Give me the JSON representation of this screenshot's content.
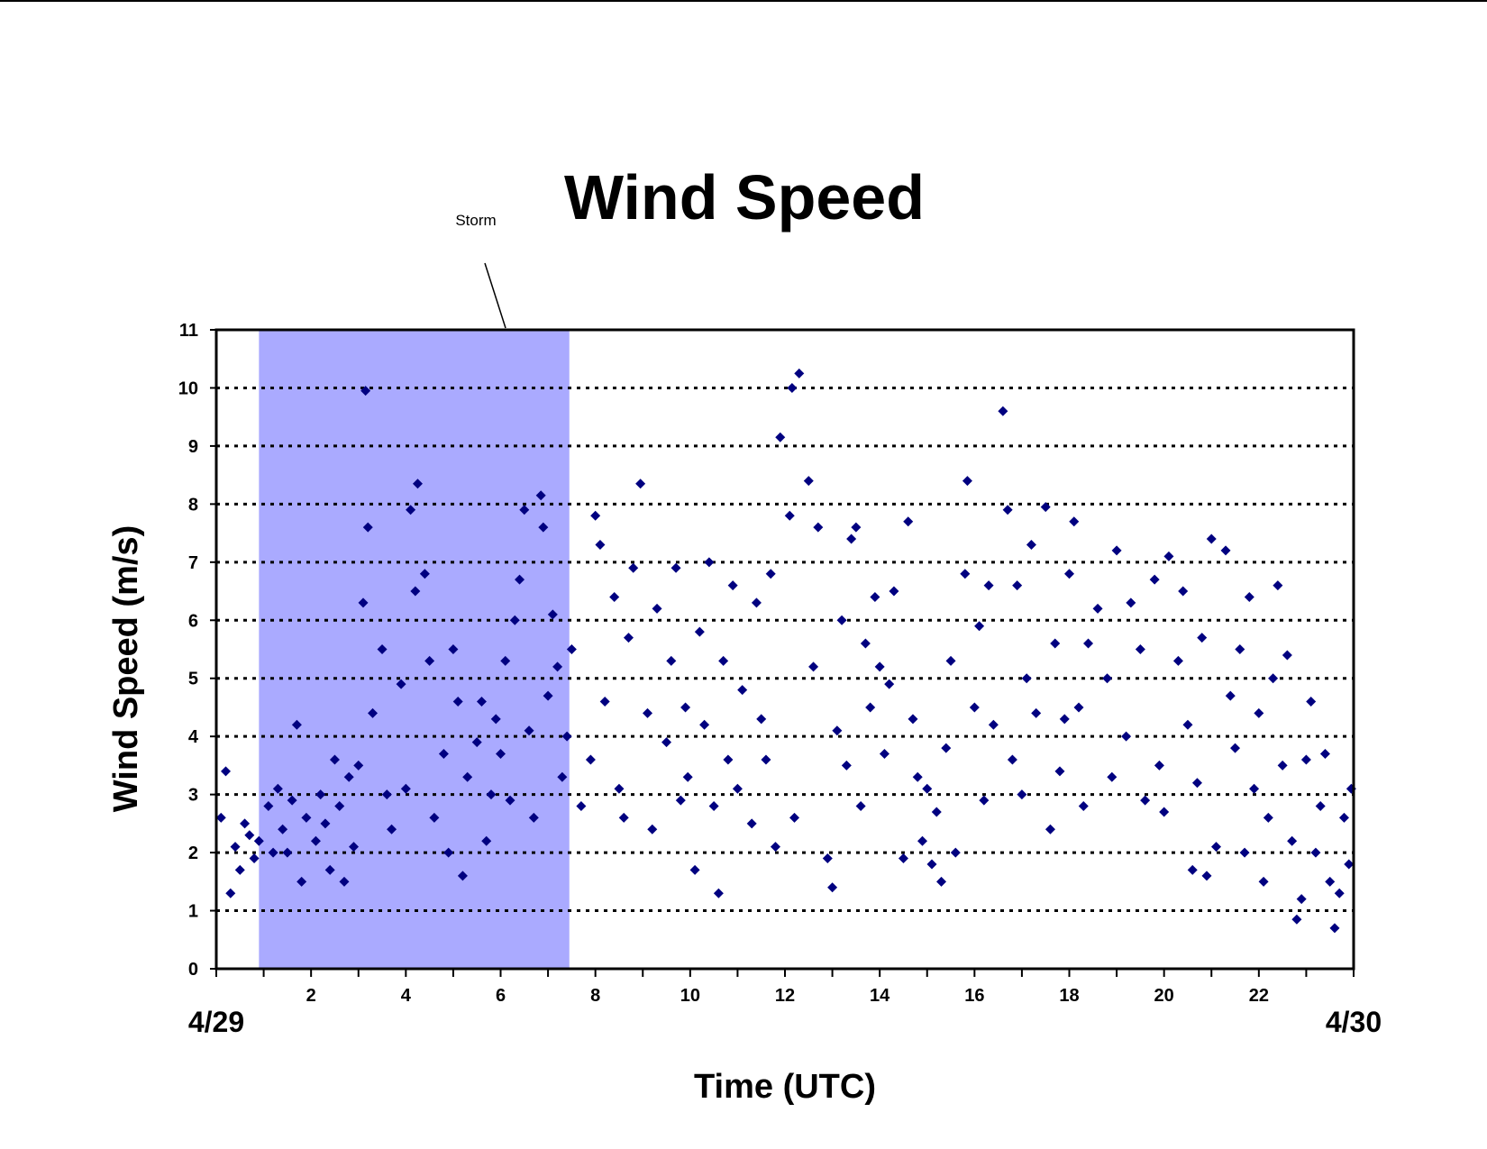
{
  "chart_data": {
    "type": "scatter",
    "title": "Wind Speed",
    "xlabel": "Time (UTC)",
    "ylabel": "Wind Speed (m/s)",
    "annotation": "Storm",
    "storm_span": [
      0.9,
      7.45
    ],
    "storm_color": "#aaaaff",
    "xlim": [
      0,
      24
    ],
    "ylim": [
      0,
      11
    ],
    "xticks": [
      {
        "value": 0,
        "label": "4/29"
      },
      2,
      4,
      6,
      8,
      10,
      12,
      14,
      16,
      18,
      20,
      22,
      {
        "value": 24,
        "label": "4/30"
      }
    ],
    "xminorticks": [
      1,
      3,
      5,
      7,
      9,
      11,
      13,
      15,
      17,
      19,
      21,
      23
    ],
    "yticks": [
      0,
      1,
      2,
      3,
      4,
      5,
      6,
      7,
      8,
      9,
      10,
      11
    ],
    "grid": true,
    "series": [
      {
        "name": "Wind Speed",
        "color": "#000080",
        "x": [
          0.1,
          0.2,
          0.3,
          0.4,
          0.5,
          0.6,
          0.7,
          0.8,
          0.9,
          1.1,
          1.2,
          1.3,
          1.4,
          1.5,
          1.6,
          1.7,
          1.8,
          1.9,
          2.1,
          2.2,
          2.3,
          2.4,
          2.5,
          2.6,
          2.7,
          2.8,
          2.9,
          3.0,
          3.1,
          3.15,
          3.2,
          3.3,
          3.5,
          3.6,
          3.7,
          3.9,
          4.0,
          4.1,
          4.2,
          4.25,
          4.4,
          4.5,
          4.6,
          4.8,
          4.9,
          5.0,
          5.1,
          5.2,
          5.3,
          5.5,
          5.6,
          5.7,
          5.8,
          5.9,
          6.0,
          6.1,
          6.2,
          6.3,
          6.4,
          6.5,
          6.6,
          6.7,
          6.85,
          6.9,
          7.0,
          7.1,
          7.2,
          7.3,
          7.4,
          7.5,
          7.7,
          7.9,
          8.0,
          8.1,
          8.2,
          8.4,
          8.5,
          8.6,
          8.7,
          8.8,
          8.95,
          9.1,
          9.2,
          9.3,
          9.5,
          9.6,
          9.7,
          9.8,
          9.9,
          9.95,
          10.1,
          10.2,
          10.3,
          10.4,
          10.5,
          10.6,
          10.7,
          10.8,
          10.9,
          11.0,
          11.1,
          11.3,
          11.4,
          11.5,
          11.6,
          11.7,
          11.8,
          11.9,
          12.1,
          12.15,
          12.3,
          12.2,
          12.5,
          12.6,
          12.7,
          12.9,
          13.0,
          13.1,
          13.2,
          13.3,
          13.4,
          13.5,
          13.6,
          13.7,
          13.8,
          13.9,
          14.0,
          14.1,
          14.2,
          14.3,
          14.5,
          14.6,
          14.7,
          14.8,
          14.9,
          15.0,
          15.1,
          15.2,
          15.3,
          15.4,
          15.5,
          15.6,
          15.8,
          15.85,
          16.0,
          16.1,
          16.2,
          16.3,
          16.4,
          16.6,
          16.7,
          16.8,
          16.9,
          17.0,
          17.1,
          17.2,
          17.3,
          17.5,
          17.6,
          17.7,
          17.8,
          17.9,
          18.0,
          18.1,
          18.2,
          18.3,
          18.4,
          18.6,
          18.8,
          18.9,
          19.0,
          19.2,
          19.3,
          19.5,
          19.6,
          19.8,
          19.9,
          20.0,
          20.1,
          20.3,
          20.4,
          20.5,
          20.6,
          20.7,
          20.8,
          20.9,
          21.0,
          21.1,
          21.3,
          21.4,
          21.5,
          21.6,
          21.7,
          21.8,
          21.9,
          22.0,
          22.1,
          22.2,
          22.3,
          22.4,
          22.5,
          22.6,
          22.7,
          22.8,
          22.9,
          23.0,
          23.1,
          23.2,
          23.3,
          23.4,
          23.5,
          23.6,
          23.7,
          23.8,
          23.9,
          23.95
        ],
        "values": [
          2.6,
          3.4,
          1.3,
          2.1,
          1.7,
          2.5,
          2.3,
          1.9,
          2.2,
          2.8,
          2.0,
          3.1,
          2.4,
          2.0,
          2.9,
          4.2,
          1.5,
          2.6,
          2.2,
          3.0,
          2.5,
          1.7,
          3.6,
          2.8,
          1.5,
          3.3,
          2.1,
          3.5,
          6.3,
          9.95,
          7.6,
          4.4,
          5.5,
          3.0,
          2.4,
          4.9,
          3.1,
          7.9,
          6.5,
          8.35,
          6.8,
          5.3,
          2.6,
          3.7,
          2.0,
          5.5,
          4.6,
          1.6,
          3.3,
          3.9,
          4.6,
          2.2,
          3.0,
          4.3,
          3.7,
          5.3,
          2.9,
          6.0,
          6.7,
          7.9,
          4.1,
          2.6,
          8.15,
          7.6,
          4.7,
          6.1,
          5.2,
          3.3,
          4.0,
          5.5,
          2.8,
          3.6,
          7.8,
          7.3,
          4.6,
          6.4,
          3.1,
          2.6,
          5.7,
          6.9,
          8.35,
          4.4,
          2.4,
          6.2,
          3.9,
          5.3,
          6.9,
          2.9,
          4.5,
          3.3,
          1.7,
          5.8,
          4.2,
          7.0,
          2.8,
          1.3,
          5.3,
          3.6,
          6.6,
          3.1,
          4.8,
          2.5,
          6.3,
          4.3,
          3.6,
          6.8,
          2.1,
          9.15,
          7.8,
          10.0,
          10.25,
          2.6,
          8.4,
          5.2,
          7.6,
          1.9,
          1.4,
          4.1,
          6.0,
          3.5,
          7.4,
          7.6,
          2.8,
          5.6,
          4.5,
          6.4,
          5.2,
          3.7,
          4.9,
          6.5,
          1.9,
          7.7,
          4.3,
          3.3,
          2.2,
          3.1,
          1.8,
          2.7,
          1.5,
          3.8,
          5.3,
          2.0,
          6.8,
          8.4,
          4.5,
          5.9,
          2.9,
          6.6,
          4.2,
          9.6,
          7.9,
          3.6,
          6.6,
          3.0,
          5.0,
          7.3,
          4.4,
          7.95,
          2.4,
          5.6,
          3.4,
          4.3,
          6.8,
          7.7,
          4.5,
          2.8,
          5.6,
          6.2,
          5.0,
          3.3,
          7.2,
          4.0,
          6.3,
          5.5,
          2.9,
          6.7,
          3.5,
          2.7,
          7.1,
          5.3,
          6.5,
          4.2,
          1.7,
          3.2,
          5.7,
          1.6,
          7.4,
          2.1,
          7.2,
          4.7,
          3.8,
          5.5,
          2.0,
          6.4,
          3.1,
          4.4,
          1.5,
          2.6,
          5.0,
          6.6,
          3.5,
          5.4,
          2.2,
          0.85,
          1.2,
          3.6,
          4.6,
          2.0,
          2.8,
          3.7,
          1.5,
          0.7,
          1.3,
          2.6,
          1.8,
          3.1
        ]
      }
    ]
  }
}
